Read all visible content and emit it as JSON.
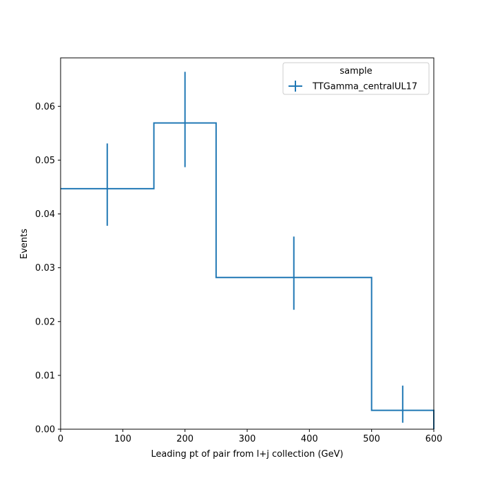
{
  "chart_data": {
    "type": "histogram",
    "xlabel": "Leading pt of pair from l+j collection (GeV)",
    "ylabel": "Events",
    "xlim": [
      0,
      600
    ],
    "ylim": [
      0,
      0.069
    ],
    "grid": false,
    "x_ticks": [
      0,
      100,
      200,
      300,
      400,
      500,
      600
    ],
    "x_tick_labels": [
      "0",
      "100",
      "200",
      "300",
      "400",
      "500",
      "600"
    ],
    "y_ticks": [
      0.0,
      0.01,
      0.02,
      0.03,
      0.04,
      0.05,
      0.06
    ],
    "y_tick_labels": [
      "0.00",
      "0.01",
      "0.02",
      "0.03",
      "0.04",
      "0.05",
      "0.06"
    ],
    "legend": {
      "title": "sample",
      "position": "top-right"
    },
    "series": [
      {
        "name": "TTGamma_centralUL17",
        "color": "#1f77b4",
        "bin_edges": [
          0,
          150,
          250,
          500,
          600
        ],
        "bin_centers": [
          75,
          200,
          375,
          550
        ],
        "values": [
          0.0447,
          0.0569,
          0.0282,
          0.0035
        ],
        "error_low": [
          0.0378,
          0.0487,
          0.0222,
          0.0012
        ],
        "error_high": [
          0.0531,
          0.0664,
          0.0358,
          0.0081
        ]
      }
    ]
  }
}
